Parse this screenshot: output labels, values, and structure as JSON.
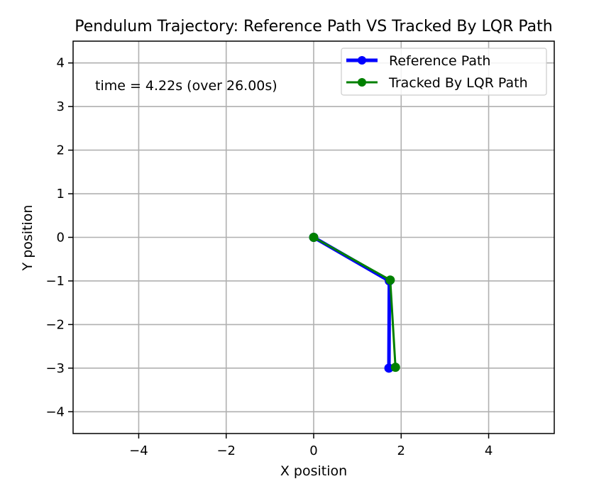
{
  "chart_data": {
    "type": "line",
    "title": "Pendulum Trajectory: Reference Path VS Tracked By LQR Path",
    "xlabel": "X position",
    "ylabel": "Y position",
    "xlim": [
      -5.5,
      5.5
    ],
    "ylim": [
      -4.5,
      4.5
    ],
    "xticks": [
      -4,
      -2,
      0,
      2,
      4
    ],
    "yticks": [
      -4,
      -3,
      -2,
      -1,
      0,
      1,
      2,
      3,
      4
    ],
    "grid": true,
    "legend_position": "top-right",
    "annotation": "time = 4.22s (over 26.00s)",
    "series": [
      {
        "name": "Reference Path",
        "color": "#0000ff",
        "line_width": 5,
        "x": [
          0,
          1.73,
          1.72
        ],
        "y": [
          0,
          -1.0,
          -3.0
        ]
      },
      {
        "name": "Tracked By LQR Path",
        "color": "#008000",
        "line_width": 3,
        "x": [
          0,
          1.75,
          1.87
        ],
        "y": [
          0,
          -0.98,
          -2.98
        ]
      }
    ]
  }
}
